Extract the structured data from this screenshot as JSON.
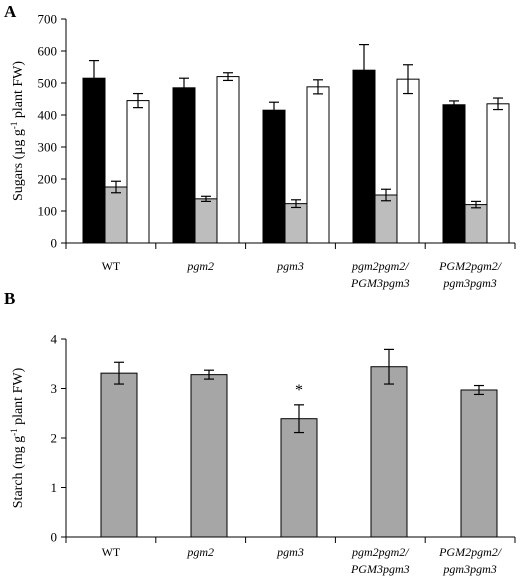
{
  "chart_data": [
    {
      "panel": "A",
      "type": "bar",
      "ylabel_prefix": "Sugars (µg g",
      "ylabel_sup": "-1",
      "ylabel_suffix": " plant FW)",
      "ylim": [
        0,
        700
      ],
      "yticks": [
        0,
        100,
        200,
        300,
        400,
        500,
        600,
        700
      ],
      "categories": [
        {
          "lines": [
            "WT"
          ],
          "italic": false
        },
        {
          "lines": [
            "pgm2"
          ],
          "italic": true
        },
        {
          "lines": [
            "pgm3"
          ],
          "italic": true
        },
        {
          "lines": [
            "pgm2pgm2/",
            "PGM3pgm3"
          ],
          "italic": true
        },
        {
          "lines": [
            "PGM2pgm2/",
            "pgm3pgm3"
          ],
          "italic": true
        }
      ],
      "series": [
        {
          "color": "#000000",
          "values": [
            515,
            485,
            415,
            540,
            432
          ],
          "errors": [
            55,
            30,
            25,
            80,
            12
          ]
        },
        {
          "color": "#bdbdbd",
          "values": [
            175,
            138,
            123,
            150,
            120
          ],
          "errors": [
            18,
            8,
            12,
            18,
            10
          ]
        },
        {
          "color": "#ffffff",
          "values": [
            445,
            520,
            488,
            512,
            435
          ],
          "errors": [
            22,
            12,
            22,
            45,
            18
          ]
        }
      ]
    },
    {
      "panel": "B",
      "type": "bar",
      "ylabel_prefix": "Starch (mg g",
      "ylabel_sup": "-1",
      "ylabel_suffix": " plant FW)",
      "ylim": [
        0,
        4
      ],
      "yticks": [
        0,
        1,
        2,
        3,
        4
      ],
      "categories": [
        {
          "lines": [
            "WT"
          ],
          "italic": false
        },
        {
          "lines": [
            "pgm2"
          ],
          "italic": true
        },
        {
          "lines": [
            "pgm3"
          ],
          "italic": true
        },
        {
          "lines": [
            "pgm2pgm2/",
            "PGM3pgm3"
          ],
          "italic": true
        },
        {
          "lines": [
            "PGM2pgm2/",
            "pgm3pgm3"
          ],
          "italic": true
        }
      ],
      "series": [
        {
          "color": "#a6a6a6",
          "values": [
            3.31,
            3.28,
            2.39,
            3.44,
            2.97
          ],
          "errors": [
            0.22,
            0.09,
            0.28,
            0.35,
            0.09
          ]
        }
      ],
      "annotations": [
        {
          "category_index": 2,
          "text": "*"
        }
      ]
    }
  ]
}
